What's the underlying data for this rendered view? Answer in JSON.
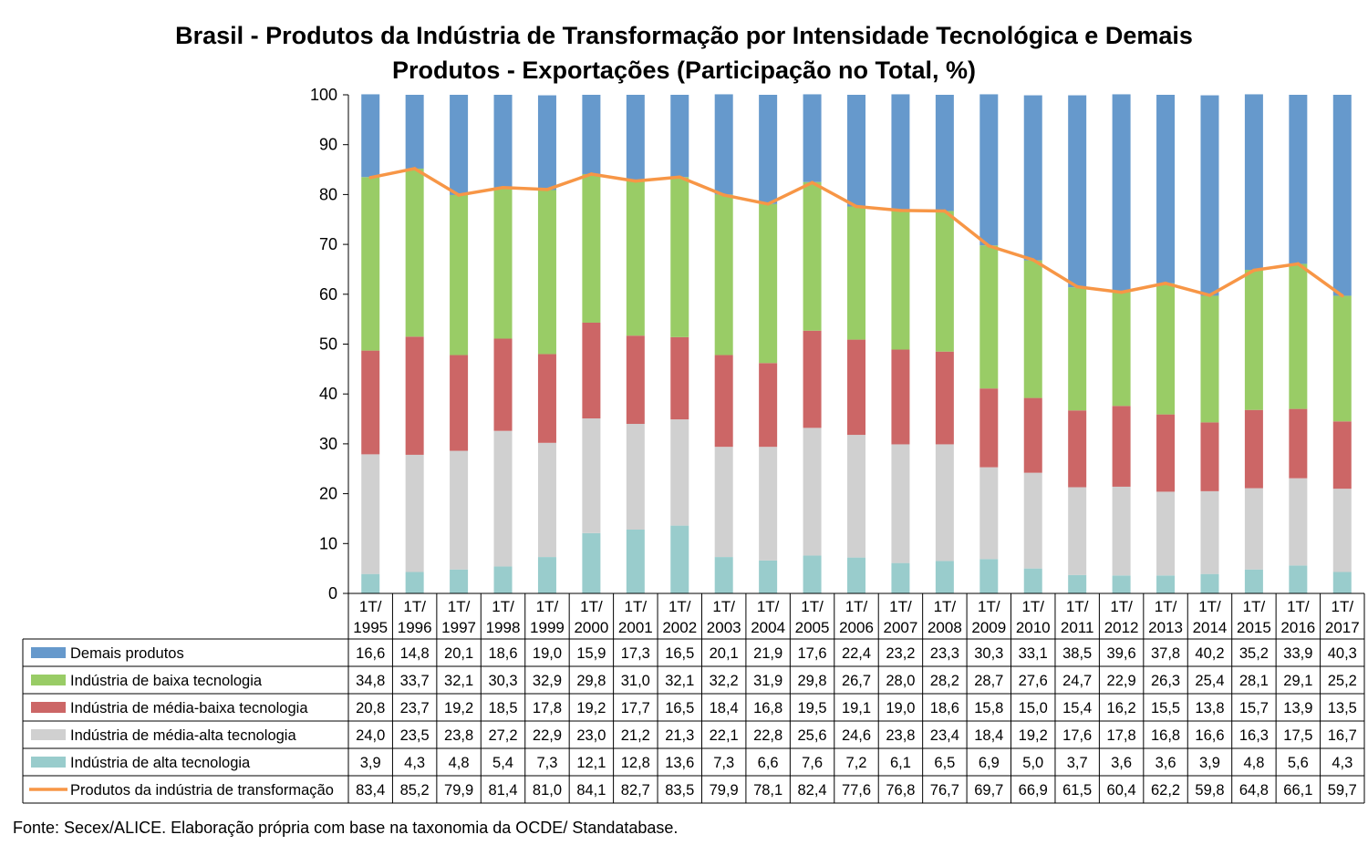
{
  "title": {
    "line1": "Brasil - Produtos da Indústria de Transformação por Intensidade Tecnológica e Demais",
    "line2": "Produtos - Exportações (Participação no Total, %)"
  },
  "source": "Fonte: Secex/ALICE. Elaboração própria com base na taxonomia da OCDE/ Standatabase.",
  "chart_data": {
    "type": "bar",
    "stacked": true,
    "title": "Brasil - Produtos da Indústria de Transformação por Intensidade Tecnológica e Demais Produtos - Exportações (Participação no Total, %)",
    "ylim": [
      0,
      100
    ],
    "yticks": [
      0,
      10,
      20,
      30,
      40,
      50,
      60,
      70,
      80,
      90,
      100
    ],
    "grid": false,
    "legend": "data table below chart",
    "categories": [
      [
        "1T/",
        "1995"
      ],
      [
        "1T/",
        "1996"
      ],
      [
        "1T/",
        "1997"
      ],
      [
        "1T/",
        "1998"
      ],
      [
        "1T/",
        "1999"
      ],
      [
        "1T/",
        "2000"
      ],
      [
        "1T/",
        "2001"
      ],
      [
        "1T/",
        "2002"
      ],
      [
        "1T/",
        "2003"
      ],
      [
        "1T/",
        "2004"
      ],
      [
        "1T/",
        "2005"
      ],
      [
        "1T/",
        "2006"
      ],
      [
        "1T/",
        "2007"
      ],
      [
        "1T/",
        "2008"
      ],
      [
        "1T/",
        "2009"
      ],
      [
        "1T/",
        "2010"
      ],
      [
        "1T/",
        "2011"
      ],
      [
        "1T/",
        "2012"
      ],
      [
        "1T/",
        "2013"
      ],
      [
        "1T/",
        "2014"
      ],
      [
        "1T/",
        "2015"
      ],
      [
        "1T/",
        "2016"
      ],
      [
        "1T/",
        "2017"
      ]
    ],
    "series": [
      {
        "name": "Demais produtos",
        "kind": "bar",
        "color": "#6699CC",
        "values": [
          16.6,
          14.8,
          20.1,
          18.6,
          19.0,
          15.9,
          17.3,
          16.5,
          20.1,
          21.9,
          17.6,
          22.4,
          23.2,
          23.3,
          30.3,
          33.1,
          38.5,
          39.6,
          37.8,
          40.2,
          35.2,
          33.9,
          40.3
        ],
        "labels": [
          "16,6",
          "14,8",
          "20,1",
          "18,6",
          "19,0",
          "15,9",
          "17,3",
          "16,5",
          "20,1",
          "21,9",
          "17,6",
          "22,4",
          "23,2",
          "23,3",
          "30,3",
          "33,1",
          "38,5",
          "39,6",
          "37,8",
          "40,2",
          "35,2",
          "33,9",
          "40,3"
        ]
      },
      {
        "name": "Indústria de baixa tecnologia",
        "kind": "bar",
        "color": "#99CC66",
        "values": [
          34.8,
          33.7,
          32.1,
          30.3,
          32.9,
          29.8,
          31.0,
          32.1,
          32.2,
          31.9,
          29.8,
          26.7,
          28.0,
          28.2,
          28.7,
          27.6,
          24.7,
          22.9,
          26.3,
          25.4,
          28.1,
          29.1,
          25.2
        ],
        "labels": [
          "34,8",
          "33,7",
          "32,1",
          "30,3",
          "32,9",
          "29,8",
          "31,0",
          "32,1",
          "32,2",
          "31,9",
          "29,8",
          "26,7",
          "28,0",
          "28,2",
          "28,7",
          "27,6",
          "24,7",
          "22,9",
          "26,3",
          "25,4",
          "28,1",
          "29,1",
          "25,2"
        ]
      },
      {
        "name": "Indústria de média-baixa tecnologia",
        "kind": "bar",
        "color": "#CC6666",
        "values": [
          20.8,
          23.7,
          19.2,
          18.5,
          17.8,
          19.2,
          17.7,
          16.5,
          18.4,
          16.8,
          19.5,
          19.1,
          19.0,
          18.6,
          15.8,
          15.0,
          15.4,
          16.2,
          15.5,
          13.8,
          15.7,
          13.9,
          13.5
        ],
        "labels": [
          "20,8",
          "23,7",
          "19,2",
          "18,5",
          "17,8",
          "19,2",
          "17,7",
          "16,5",
          "18,4",
          "16,8",
          "19,5",
          "19,1",
          "19,0",
          "18,6",
          "15,8",
          "15,0",
          "15,4",
          "16,2",
          "15,5",
          "13,8",
          "15,7",
          "13,9",
          "13,5"
        ]
      },
      {
        "name": "Indústria de média-alta tecnologia",
        "kind": "bar",
        "color": "#D0D0D0",
        "values": [
          24.0,
          23.5,
          23.8,
          27.2,
          22.9,
          23.0,
          21.2,
          21.3,
          22.1,
          22.8,
          25.6,
          24.6,
          23.8,
          23.4,
          18.4,
          19.2,
          17.6,
          17.8,
          16.8,
          16.6,
          16.3,
          17.5,
          16.7
        ],
        "labels": [
          "24,0",
          "23,5",
          "23,8",
          "27,2",
          "22,9",
          "23,0",
          "21,2",
          "21,3",
          "22,1",
          "22,8",
          "25,6",
          "24,6",
          "23,8",
          "23,4",
          "18,4",
          "19,2",
          "17,6",
          "17,8",
          "16,8",
          "16,6",
          "16,3",
          "17,5",
          "16,7"
        ]
      },
      {
        "name": "Indústria de alta tecnologia",
        "kind": "bar",
        "color": "#99CCCC",
        "values": [
          3.9,
          4.3,
          4.8,
          5.4,
          7.3,
          12.1,
          12.8,
          13.6,
          7.3,
          6.6,
          7.6,
          7.2,
          6.1,
          6.5,
          6.9,
          5.0,
          3.7,
          3.6,
          3.6,
          3.9,
          4.8,
          5.6,
          4.3
        ],
        "labels": [
          "3,9",
          "4,3",
          "4,8",
          "5,4",
          "7,3",
          "12,1",
          "12,8",
          "13,6",
          "7,3",
          "6,6",
          "7,6",
          "7,2",
          "6,1",
          "6,5",
          "6,9",
          "5,0",
          "3,7",
          "3,6",
          "3,6",
          "3,9",
          "4,8",
          "5,6",
          "4,3"
        ]
      },
      {
        "name": "Produtos da indústria de transformação",
        "kind": "line",
        "color": "#F79646",
        "values": [
          83.4,
          85.2,
          79.9,
          81.4,
          81.0,
          84.1,
          82.7,
          83.5,
          79.9,
          78.1,
          82.4,
          77.6,
          76.8,
          76.7,
          69.7,
          66.9,
          61.5,
          60.4,
          62.2,
          59.8,
          64.8,
          66.1,
          59.7
        ],
        "labels": [
          "83,4",
          "85,2",
          "79,9",
          "81,4",
          "81,0",
          "84,1",
          "82,7",
          "83,5",
          "79,9",
          "78,1",
          "82,4",
          "77,6",
          "76,8",
          "76,7",
          "69,7",
          "66,9",
          "61,5",
          "60,4",
          "62,2",
          "59,8",
          "64,8",
          "66,1",
          "59,7"
        ]
      }
    ]
  }
}
